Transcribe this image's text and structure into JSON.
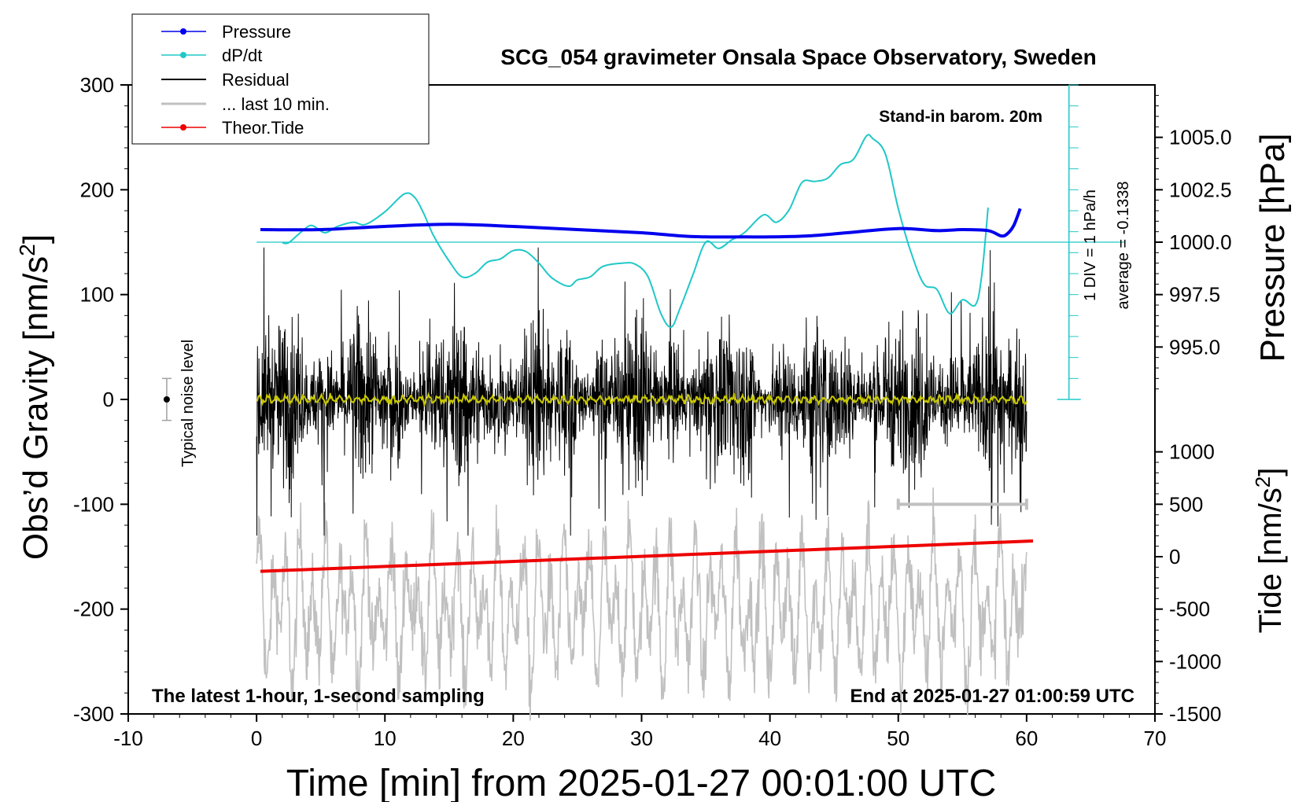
{
  "chart_data": {
    "type": "line",
    "title": "SCG_054 gravimeter Onsala Space Observatory, Sweden",
    "xlabel": "Time [min] from 2025-01-27 00:01:00 UTC",
    "ylabel_left": "Obs’d Gravity [nm/s2]",
    "ylabel_pressure": "Pressure [hPa]",
    "ylabel_tide": "Tide [nm/s2]",
    "x_ticks": [
      "-10",
      "0",
      "10",
      "20",
      "30",
      "40",
      "50",
      "60",
      "70"
    ],
    "xlim": [
      -10,
      70
    ],
    "y_ticks": [
      "300",
      "200",
      "100",
      "0",
      "-100",
      "-200",
      "-300"
    ],
    "ylim": [
      -300,
      300
    ],
    "pressure_ticks": [
      "1005.0",
      "1002.5",
      "1000.0",
      "997.5",
      "995.0"
    ],
    "pressure_tick_values": [
      1005.0,
      1002.5,
      1000.0,
      997.5,
      995.0
    ],
    "tide_ticks": [
      "1000",
      "500",
      "0",
      "-500",
      "-1000",
      "-1500"
    ],
    "tide_tick_values": [
      1000,
      500,
      0,
      -500,
      -1000,
      -1500
    ],
    "legend": {
      "pressure": "Pressure",
      "dpdt": "dP/dt",
      "residual": "Residual",
      "last10": "... last 10 min.",
      "tide": "Theor.Tide"
    },
    "annotations": {
      "barom": "Stand-in barom. 20m",
      "div": "1 DIV = 1 hPa/h",
      "average": "average = -0.1338",
      "noise": "Typical noise level",
      "sampling": "The latest 1-hour, 1-second sampling",
      "end": "End at 2025-01-27 01:00:59 UTC"
    },
    "series": [
      {
        "name": "Pressure",
        "color": "#0000ee",
        "units": "hPa",
        "x": [
          0.3,
          5,
          10,
          15,
          20,
          25,
          30,
          33,
          35,
          38,
          40,
          43,
          46,
          50,
          53,
          55,
          57,
          58,
          58.5,
          59,
          59.5
        ],
        "values": [
          1000.6,
          1000.6,
          1000.75,
          1000.85,
          1000.75,
          1000.6,
          1000.45,
          1000.3,
          1000.25,
          1000.25,
          1000.25,
          1000.3,
          1000.45,
          1000.65,
          1000.55,
          1000.6,
          1000.55,
          1000.3,
          1000.4,
          1000.8,
          1001.6
        ]
      },
      {
        "name": "dP/dt",
        "color": "#20c8c8",
        "units": "hPa/h (0 at 1000.0 line)",
        "x": [
          2,
          2.5,
          3.5,
          4.3,
          5.3,
          6.3,
          7.5,
          8.5,
          10,
          11.5,
          12.3,
          13,
          13.8,
          15,
          16,
          17,
          18,
          19,
          20,
          21,
          22,
          23,
          24.3,
          25,
          26,
          27,
          28.5,
          29.5,
          30.5,
          31.5,
          32.3,
          33,
          34,
          35,
          36,
          37,
          38,
          39.5,
          40.5,
          41.5,
          42.5,
          43.5,
          44.5,
          45.5,
          46.5,
          47.5,
          48,
          49,
          50,
          51,
          52,
          53,
          54,
          55,
          56,
          56.5,
          57
        ],
        "values": [
          -0.05,
          -0.05,
          1.0,
          1.6,
          0.9,
          1.5,
          1.9,
          1.7,
          2.9,
          4.6,
          4.3,
          2.8,
          0.6,
          -1.8,
          -3.3,
          -3.0,
          -1.9,
          -1.6,
          -0.8,
          -0.9,
          -2.0,
          -3.4,
          -4.2,
          -3.6,
          -3.3,
          -2.3,
          -2.0,
          -2.1,
          -3.3,
          -6.8,
          -8.1,
          -6.3,
          -3.1,
          0.0,
          -0.6,
          0.2,
          0.9,
          2.6,
          1.9,
          3.1,
          5.7,
          5.8,
          6.1,
          7.4,
          7.9,
          10.1,
          9.9,
          8.4,
          3.2,
          -1.0,
          -4.0,
          -4.5,
          -6.8,
          -5.5,
          -6.0,
          -3.2,
          3.3
        ]
      },
      {
        "name": "Residual",
        "color": "#000000",
        "x_range": [
          0,
          60
        ],
        "amplitude_typical": 60
      },
      {
        "name": "... last 10 min.",
        "color": "#c0c0c0",
        "x_range": [
          0,
          60
        ],
        "center": -200
      },
      {
        "name": "Theor.Tide",
        "color": "#ee0000",
        "units": "nm/s2",
        "x": [
          0.3,
          60.5
        ],
        "values": [
          -140,
          150
        ]
      },
      {
        "name": "Smoothed residual",
        "color": "#c8c800",
        "x_range": [
          0,
          60
        ],
        "center": 0
      }
    ],
    "noise_bar": {
      "x": -7,
      "y": 0,
      "half_range": 20
    },
    "last10_bar": {
      "x": [
        50,
        60
      ],
      "y": -100
    }
  }
}
